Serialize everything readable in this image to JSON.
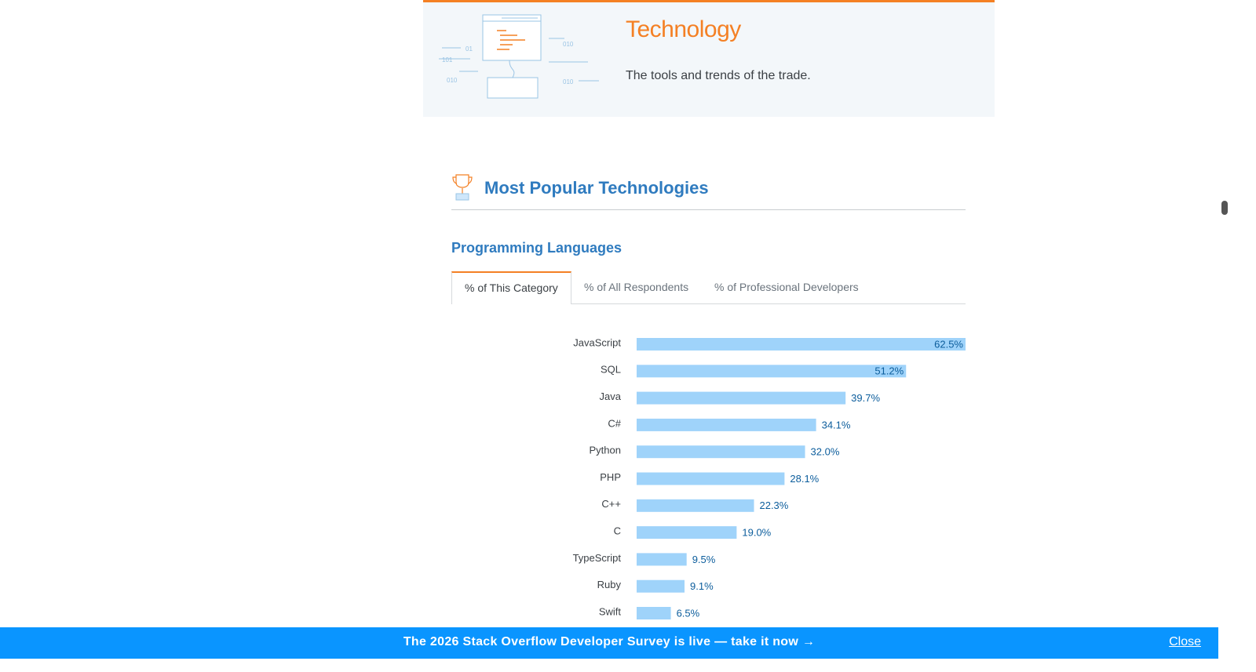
{
  "header": {
    "title": "Technology",
    "subtitle": "The tools and trends of the trade."
  },
  "section": {
    "title": "Most Popular Technologies",
    "subtitle": "Programming Languages"
  },
  "tabs": [
    "% of This Category",
    "% of All Respondents",
    "% of Professional Developers"
  ],
  "chart_data": {
    "type": "bar",
    "orientation": "horizontal",
    "categories": [
      "JavaScript",
      "SQL",
      "Java",
      "C#",
      "Python",
      "PHP",
      "C++",
      "C",
      "TypeScript",
      "Ruby",
      "Swift"
    ],
    "values": [
      62.5,
      51.2,
      39.7,
      34.1,
      32.0,
      28.1,
      22.3,
      19.0,
      9.5,
      9.1,
      6.5
    ],
    "value_labels": [
      "62.5%",
      "51.2%",
      "39.7%",
      "34.1%",
      "32.0%",
      "28.1%",
      "22.3%",
      "19.0%",
      "9.5%",
      "9.1%",
      "6.5%"
    ],
    "color": "#9fd3fa",
    "xlim": [
      0,
      62.5
    ]
  },
  "banner": {
    "text": "The 2026 Stack Overflow Developer Survey is live — take it now →",
    "close": "Close"
  }
}
